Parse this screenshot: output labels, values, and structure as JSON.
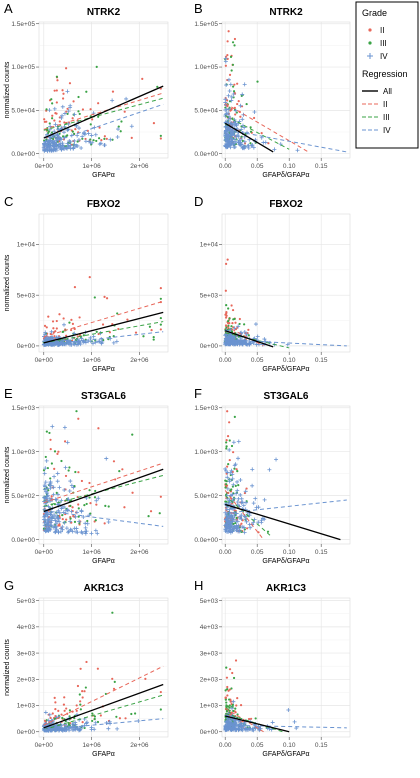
{
  "legend": {
    "grade_title": "Grade",
    "regression_title": "Regression",
    "grade_items": [
      {
        "label": "II",
        "color": "#e8675a",
        "marker": "•"
      },
      {
        "label": "III",
        "color": "#3aa346",
        "marker": "•"
      },
      {
        "label": "IV",
        "color": "#6a93d0",
        "marker": "+"
      }
    ],
    "regression_items": [
      {
        "label": "All",
        "color": "#000000",
        "dashed": false
      },
      {
        "label": "II",
        "color": "#e8675a",
        "dashed": true
      },
      {
        "label": "III",
        "color": "#3aa346",
        "dashed": true
      },
      {
        "label": "IV",
        "color": "#6a93d0",
        "dashed": true
      }
    ]
  },
  "colors": {
    "II": "#e8675a",
    "III": "#3aa346",
    "IV": "#6a93d0",
    "All": "#000000",
    "grid": "#e6e6e6"
  },
  "chart_data": [
    {
      "panel": "A",
      "title": "NTRK2",
      "type": "scatter",
      "xlabel": "GFAPα",
      "ylabel": "normalized counts",
      "xlim": [
        -100000,
        2600000
      ],
      "ylim": [
        -5000,
        152000
      ],
      "xticks": [
        0,
        1000000,
        2000000
      ],
      "xtick_labels": [
        "0e+00",
        "1e+06",
        "2e+06"
      ],
      "yticks": [
        0,
        50000,
        100000,
        150000
      ],
      "ytick_labels": [
        "0.0e+00",
        "5.0e+04",
        "1.0e+05",
        "1.5e+05"
      ],
      "regression": {
        "All": [
          [
            0,
            18000
          ],
          [
            2500000,
            78000
          ]
        ],
        "II": [
          [
            0,
            28000
          ],
          [
            2500000,
            70000
          ]
        ],
        "III": [
          [
            0,
            27000
          ],
          [
            2500000,
            64000
          ]
        ],
        "IV": [
          [
            0,
            10000
          ],
          [
            2500000,
            57000
          ]
        ]
      }
    },
    {
      "panel": "B",
      "title": "NTRK2",
      "type": "scatter",
      "xlabel": "GFAPδ/GFAPα",
      "ylabel": "",
      "xlim": [
        -0.005,
        0.195
      ],
      "ylim": [
        -5000,
        152000
      ],
      "xticks": [
        0,
        0.05,
        0.1,
        0.15
      ],
      "xtick_labels": [
        "0.00",
        "0.05",
        "0.10",
        "0.15"
      ],
      "yticks": [
        0,
        50000,
        100000,
        150000
      ],
      "ytick_labels": [
        "0.0e+00",
        "5.0e+04",
        "1.0e+05",
        "1.5e+05"
      ],
      "regression": {
        "All": [
          [
            0,
            35000
          ],
          [
            0.075,
            2000
          ]
        ],
        "II": [
          [
            0,
            58000
          ],
          [
            0.13,
            2000
          ]
        ],
        "III": [
          [
            0,
            44000
          ],
          [
            0.1,
            5000
          ]
        ],
        "IV": [
          [
            0,
            28000
          ],
          [
            0.19,
            2000
          ]
        ]
      }
    },
    {
      "panel": "C",
      "title": "FBXO2",
      "type": "scatter",
      "xlabel": "GFAPα",
      "ylabel": "normalized counts",
      "xlim": [
        -100000,
        2600000
      ],
      "ylim": [
        -600,
        13000
      ],
      "xticks": [
        0,
        1000000,
        2000000
      ],
      "xtick_labels": [
        "0e+00",
        "1e+06",
        "2e+06"
      ],
      "yticks": [
        0,
        5000,
        10000
      ],
      "ytick_labels": [
        "0e+00",
        "5e+03",
        "1e+04"
      ],
      "regression": {
        "All": [
          [
            0,
            300
          ],
          [
            2500000,
            3300
          ]
        ],
        "II": [
          [
            0,
            900
          ],
          [
            2500000,
            4400
          ]
        ],
        "III": [
          [
            0,
            300
          ],
          [
            2500000,
            2400
          ]
        ],
        "IV": [
          [
            0,
            100
          ],
          [
            2500000,
            1400
          ]
        ]
      }
    },
    {
      "panel": "D",
      "title": "FBXO2",
      "type": "scatter",
      "xlabel": "GFAPδ/GFAPα",
      "ylabel": "",
      "xlim": [
        -0.005,
        0.195
      ],
      "ylim": [
        -600,
        13000
      ],
      "xticks": [
        0,
        0.05,
        0.1,
        0.15
      ],
      "xtick_labels": [
        "0.00",
        "0.05",
        "0.10",
        "0.15"
      ],
      "yticks": [
        0,
        5000,
        10000
      ],
      "ytick_labels": [
        "0e+00",
        "5e+03",
        "1e+04"
      ],
      "regression": {
        "All": [
          [
            0,
            1500
          ],
          [
            0.075,
            -100
          ]
        ],
        "II": [
          [
            0,
            2000
          ],
          [
            0.06,
            0
          ]
        ],
        "III": [
          [
            0,
            1300
          ],
          [
            0.1,
            -200
          ]
        ],
        "IV": [
          [
            0,
            600
          ],
          [
            0.19,
            0
          ]
        ]
      }
    },
    {
      "panel": "E",
      "title": "ST3GAL6",
      "type": "scatter",
      "xlabel": "GFAPα",
      "ylabel": "normalized counts",
      "xlim": [
        -100000,
        2600000
      ],
      "ylim": [
        -50,
        1520
      ],
      "xticks": [
        0,
        1000000,
        2000000
      ],
      "xtick_labels": [
        "0e+00",
        "1e+06",
        "2e+06"
      ],
      "yticks": [
        0,
        500,
        1000,
        1500
      ],
      "ytick_labels": [
        "0.0e+00",
        "5.0e+02",
        "1.0e+03",
        "1.5e+03"
      ],
      "regression": {
        "All": [
          [
            0,
            320
          ],
          [
            2500000,
            800
          ]
        ],
        "II": [
          [
            0,
            420
          ],
          [
            2500000,
            870
          ]
        ],
        "III": [
          [
            0,
            380
          ],
          [
            2500000,
            730
          ]
        ],
        "IV": [
          [
            0,
            330
          ],
          [
            2500000,
            150
          ]
        ]
      }
    },
    {
      "panel": "F",
      "title": "ST3GAL6",
      "type": "scatter",
      "xlabel": "GFAPδ/GFAPα",
      "ylabel": "",
      "xlim": [
        -0.005,
        0.195
      ],
      "ylim": [
        -50,
        1520
      ],
      "xticks": [
        0,
        0.05,
        0.1,
        0.15
      ],
      "xtick_labels": [
        "0.00",
        "0.05",
        "0.10",
        "0.15"
      ],
      "yticks": [
        0,
        500,
        1000,
        1500
      ],
      "ytick_labels": [
        "0.0e+00",
        "5.0e+02",
        "1.0e+03",
        "1.5e+03"
      ],
      "regression": {
        "All": [
          [
            0,
            400
          ],
          [
            0.18,
            0
          ]
        ],
        "II": [
          [
            0,
            560
          ],
          [
            0.06,
            0
          ]
        ],
        "III": [
          [
            0,
            500
          ],
          [
            0.07,
            50
          ]
        ],
        "IV": [
          [
            0,
            300
          ],
          [
            0.19,
            450
          ]
        ]
      }
    },
    {
      "panel": "G",
      "title": "AKR1C3",
      "type": "scatter",
      "xlabel": "GFAPα",
      "ylabel": "normalized counts",
      "xlim": [
        -100000,
        2600000
      ],
      "ylim": [
        -200,
        5100
      ],
      "xticks": [
        0,
        1000000,
        2000000
      ],
      "xtick_labels": [
        "0e+00",
        "1e+06",
        "2e+06"
      ],
      "yticks": [
        0,
        1000,
        2000,
        3000,
        4000,
        5000
      ],
      "ytick_labels": [
        "0e+00",
        "1e+03",
        "2e+03",
        "3e+03",
        "4e+03",
        "5e+03"
      ],
      "regression": {
        "All": [
          [
            0,
            150
          ],
          [
            2500000,
            1800
          ]
        ],
        "II": [
          [
            0,
            250
          ],
          [
            2500000,
            2500
          ]
        ],
        "III": [
          [
            0,
            80
          ],
          [
            2500000,
            1400
          ]
        ],
        "IV": [
          [
            0,
            80
          ],
          [
            2500000,
            500
          ]
        ]
      }
    },
    {
      "panel": "H",
      "title": "AKR1C3",
      "type": "scatter",
      "xlabel": "GFAPδ/GFAPα",
      "ylabel": "",
      "xlim": [
        -0.005,
        0.195
      ],
      "ylim": [
        -200,
        5100
      ],
      "xticks": [
        0,
        0.05,
        0.1,
        0.15
      ],
      "xtick_labels": [
        "0.00",
        "0.05",
        "0.10",
        "0.15"
      ],
      "yticks": [
        0,
        1000,
        2000,
        3000,
        4000,
        5000
      ],
      "ytick_labels": [
        "0e+00",
        "1e+03",
        "2e+03",
        "3e+03",
        "4e+03",
        "5e+03"
      ],
      "regression": {
        "All": [
          [
            0,
            600
          ],
          [
            0.1,
            0
          ]
        ],
        "II": [
          [
            0,
            900
          ],
          [
            0.06,
            0
          ]
        ],
        "III": [
          [
            0,
            700
          ],
          [
            0.09,
            0
          ]
        ],
        "IV": [
          [
            0,
            250
          ],
          [
            0.19,
            150
          ]
        ]
      }
    }
  ]
}
